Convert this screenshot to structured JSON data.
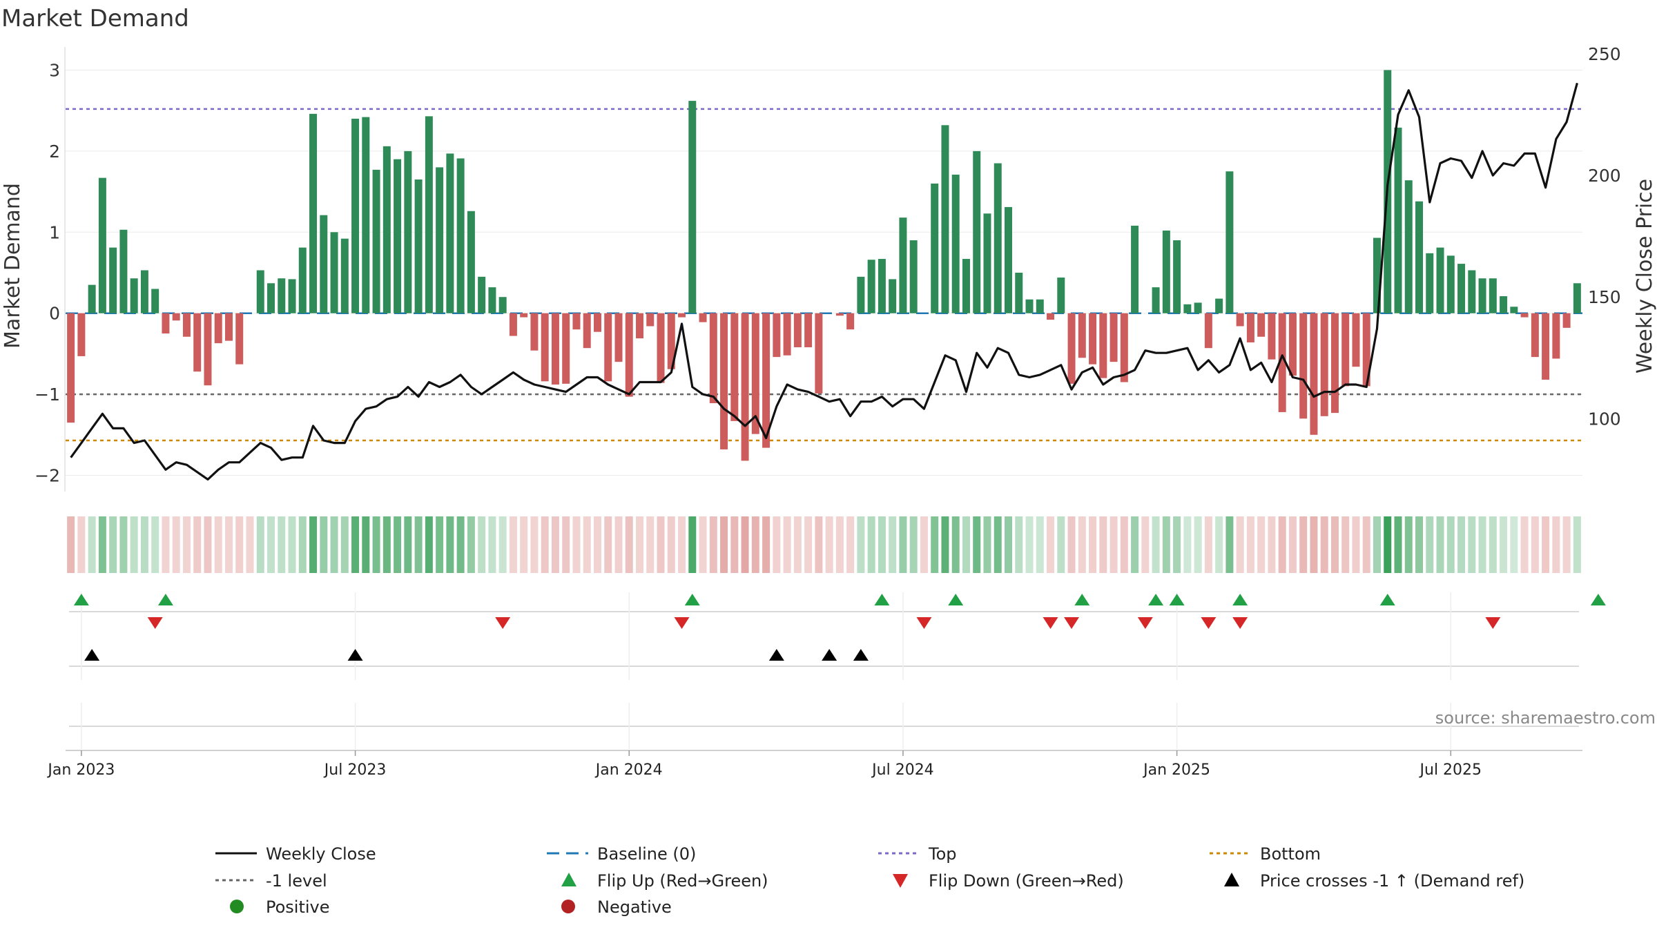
{
  "chart_data": {
    "type": "bar",
    "title": "Market Demand",
    "ylabel_left": "Market Demand",
    "ylabel_right": "Weekly Close Price",
    "ylim_left": [
      -2.2,
      3.2
    ],
    "yticks_left": [
      "3",
      "2",
      "1",
      "0",
      "−1",
      "−2"
    ],
    "ylim_right": [
      70,
      250
    ],
    "yticks_right": [
      "250",
      "200",
      "150",
      "100"
    ],
    "x_ticks": [
      "Jan 2023",
      "Jul 2023",
      "Jan 2024",
      "Jul 2024",
      "Jan 2025",
      "Jul 2025"
    ],
    "levels": {
      "top": 2.52,
      "minus_one": -1.0,
      "bottom": -1.57
    },
    "demand": [
      -1.35,
      -0.53,
      0.35,
      1.67,
      0.81,
      1.03,
      0.43,
      0.53,
      0.3,
      -0.25,
      -0.09,
      -0.29,
      -0.72,
      -0.89,
      -0.37,
      -0.34,
      -0.63,
      0.0,
      0.53,
      0.37,
      0.43,
      0.42,
      0.81,
      2.46,
      1.21,
      1.0,
      0.92,
      2.4,
      2.42,
      1.77,
      2.06,
      1.9,
      2.0,
      1.65,
      2.43,
      1.8,
      1.97,
      1.91,
      1.26,
      0.45,
      0.32,
      0.2,
      -0.28,
      -0.05,
      -0.46,
      -0.84,
      -0.88,
      -0.87,
      -0.2,
      -0.43,
      -0.23,
      -0.84,
      -0.6,
      -1.03,
      -0.31,
      -0.16,
      -0.86,
      -0.69,
      -0.05,
      2.62,
      -0.11,
      -1.11,
      -1.68,
      -1.33,
      -1.82,
      -1.49,
      -1.66,
      -0.54,
      -0.52,
      -0.42,
      -0.42,
      -0.99,
      0.0,
      -0.03,
      -0.2,
      0.45,
      0.66,
      0.67,
      0.42,
      1.18,
      0.9,
      0.0,
      1.6,
      2.32,
      1.71,
      0.67,
      2.0,
      1.23,
      1.85,
      1.31,
      0.5,
      0.17,
      0.17,
      -0.08,
      0.44,
      -0.87,
      -0.55,
      -0.63,
      -0.8,
      -0.6,
      -0.85,
      1.08,
      0.0,
      0.32,
      1.02,
      0.9,
      0.11,
      0.13,
      -0.43,
      0.18,
      1.75,
      -0.16,
      -0.36,
      -0.29,
      -0.57,
      -1.22,
      -0.77,
      -1.3,
      -1.5,
      -1.27,
      -1.23,
      -0.9,
      -0.66,
      -0.9,
      0.93,
      3.0,
      2.29,
      1.64,
      1.38,
      0.74,
      0.81,
      0.71,
      0.61,
      0.53,
      0.43,
      0.43,
      0.21,
      0.08,
      -0.05,
      -0.54,
      -0.82,
      -0.56,
      -0.18,
      0.37
    ],
    "weekly_close": [
      84,
      90,
      96,
      102,
      96,
      96,
      90,
      91,
      85,
      79,
      82,
      81,
      78,
      75,
      79,
      82,
      82,
      86,
      90,
      88,
      83,
      84,
      84,
      97,
      91,
      90,
      90,
      99,
      104,
      105,
      108,
      109,
      113,
      109,
      115,
      113,
      115,
      118,
      113,
      110,
      113,
      116,
      119,
      116,
      114,
      113,
      112,
      111,
      114,
      117,
      117,
      114,
      112,
      110,
      115,
      115,
      115,
      119,
      139,
      113,
      110,
      109,
      104,
      101,
      97,
      101,
      92,
      105,
      114,
      112,
      111,
      109,
      107,
      108,
      101,
      107,
      107,
      109,
      105,
      108,
      108,
      104,
      115,
      126,
      124,
      111,
      127,
      121,
      129,
      127,
      118,
      117,
      118,
      120,
      122,
      112,
      119,
      121,
      114,
      117,
      118,
      120,
      128,
      127,
      127,
      128,
      129,
      120,
      124,
      119,
      122,
      133,
      120,
      123,
      115,
      126,
      117,
      116,
      109,
      111,
      111,
      114,
      114,
      113,
      137,
      196,
      225,
      235,
      224,
      189,
      205,
      207,
      206,
      199,
      210,
      200,
      205,
      204,
      209,
      209,
      195,
      215,
      222,
      238
    ],
    "flip_up_weeks": [
      1,
      9,
      59,
      77,
      84,
      96,
      103,
      105,
      111,
      125,
      145
    ],
    "flip_down_weeks": [
      8,
      41,
      58,
      81,
      93,
      95,
      102,
      108,
      111,
      135
    ],
    "price_cross_weeks": [
      2,
      27,
      67,
      72,
      75
    ],
    "legend": [
      "Weekly Close",
      "Baseline (0)",
      "Top",
      "Bottom",
      "-1 level",
      "Flip Up (Red→Green)",
      "Flip Down (Green→Red)",
      "Price crosses -1 ↑ (Demand ref)",
      "Positive",
      "Negative"
    ],
    "source": "source: sharemaestro.com",
    "colors": {
      "pos_bar": "#2e8b57",
      "neg_bar": "#cd5c5c",
      "price_line": "#111111",
      "baseline": "#1f77b4",
      "top": "#7b68c8",
      "bottom": "#cc8800",
      "minus_one": "#666666",
      "flip_up": "#22a045",
      "flip_down": "#d62728",
      "cross": "#000000",
      "positive_dot": "#228b22",
      "negative_dot": "#b22222"
    }
  }
}
